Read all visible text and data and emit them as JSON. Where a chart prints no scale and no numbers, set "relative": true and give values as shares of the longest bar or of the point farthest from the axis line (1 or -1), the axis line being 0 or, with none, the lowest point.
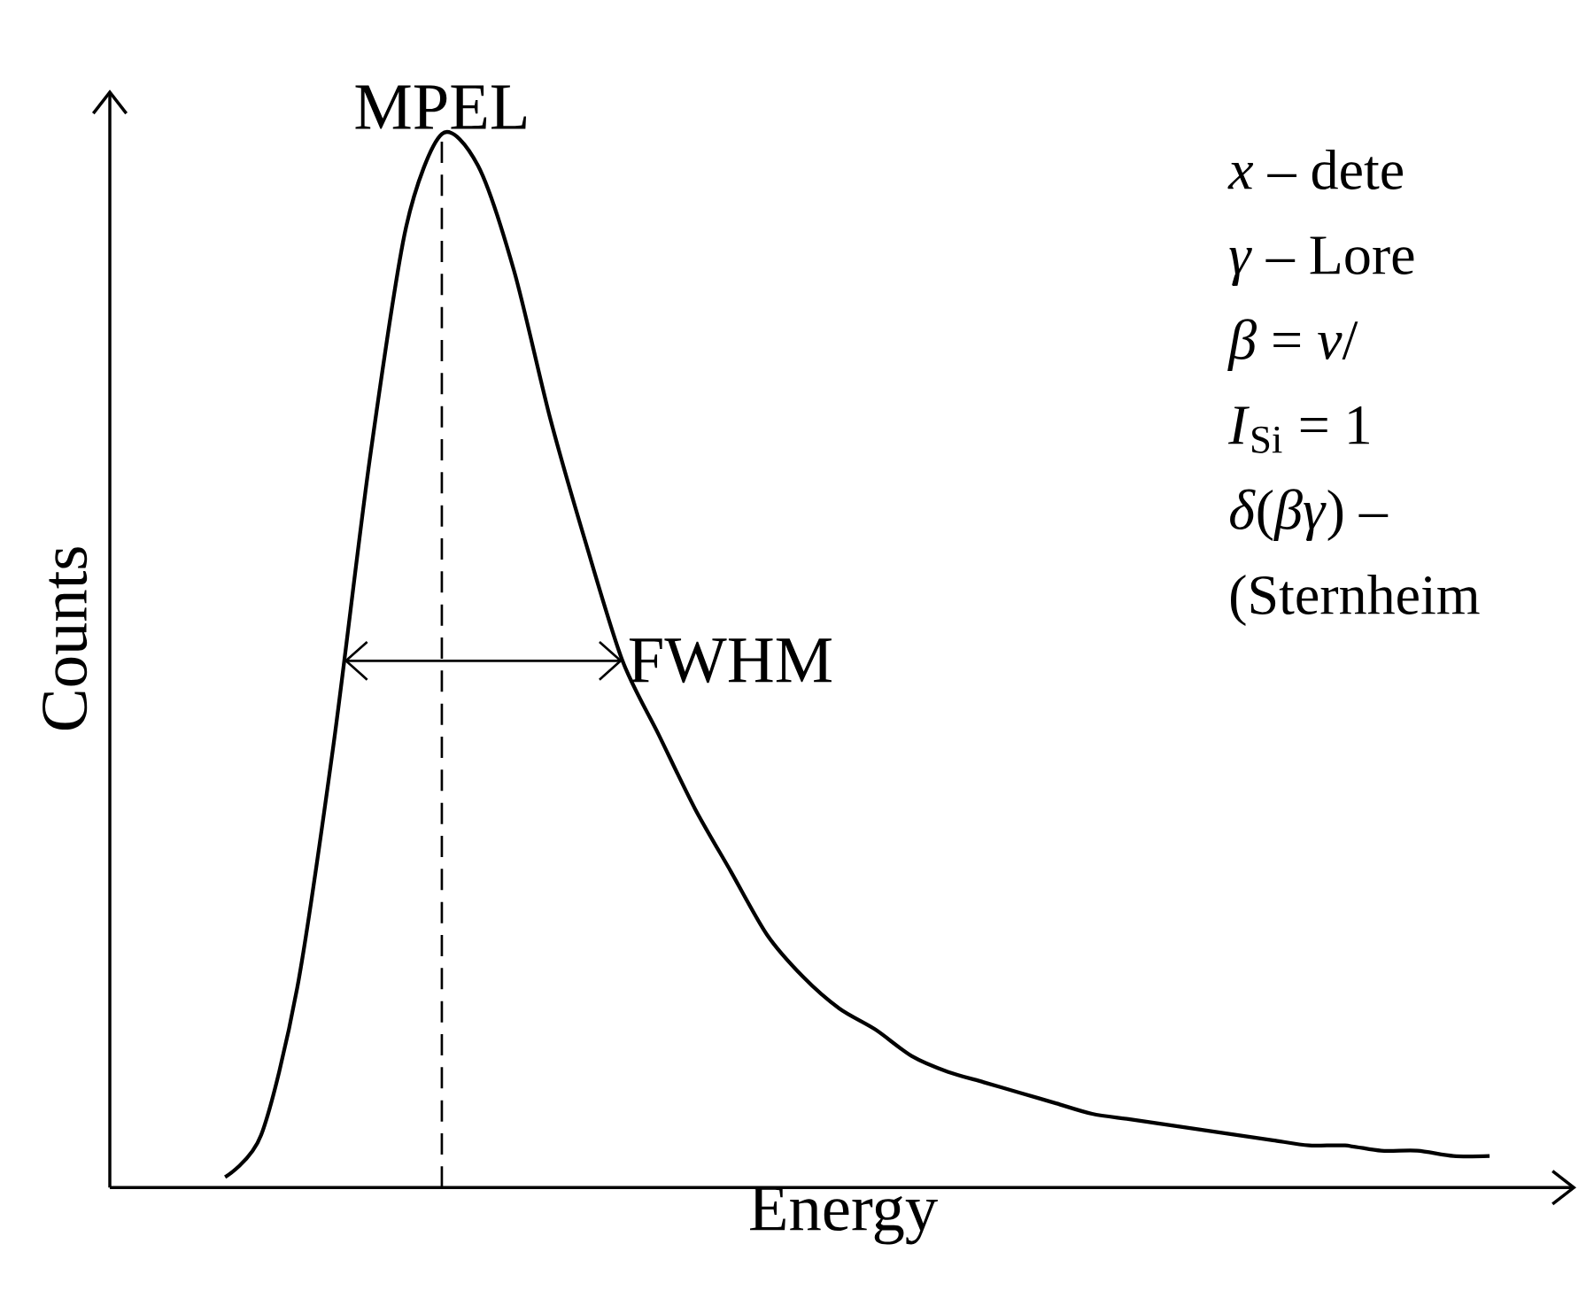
{
  "chart_data": {
    "type": "line",
    "xlabel": "Energy",
    "ylabel": "Counts",
    "relative": true,
    "categories": [
      null,
      null,
      null,
      null,
      null,
      null,
      null,
      null,
      null,
      null,
      null,
      null,
      null,
      null,
      null,
      null,
      null,
      null,
      null,
      null,
      null,
      null,
      null,
      null,
      null,
      null,
      null,
      null,
      null,
      null,
      null,
      null,
      null,
      null,
      null,
      null
    ],
    "series": [
      {
        "color": "#000000",
        "values": [
          0.01,
          0.05,
          0.19,
          0.42,
          0.69,
          0.91,
          1.0,
          0.97,
          0.87,
          0.73,
          0.61,
          0.5,
          0.43,
          0.36,
          0.3,
          0.24,
          0.2,
          0.17,
          0.15,
          0.125,
          0.11,
          0.1,
          0.09,
          0.08,
          0.07,
          0.065,
          0.06,
          0.055,
          0.05,
          0.045,
          0.04,
          0.04,
          0.035,
          0.035,
          0.03,
          0.03
        ]
      }
    ],
    "annotations": [
      "MPEL",
      "FWHM",
      "*x* – dete",
      "*γ* – Lore",
      "*β* = *v*/",
      "*I*$_{Si}$ = 1",
      "*δ*(*βγ*) –",
      "(Sternheim"
    ]
  }
}
